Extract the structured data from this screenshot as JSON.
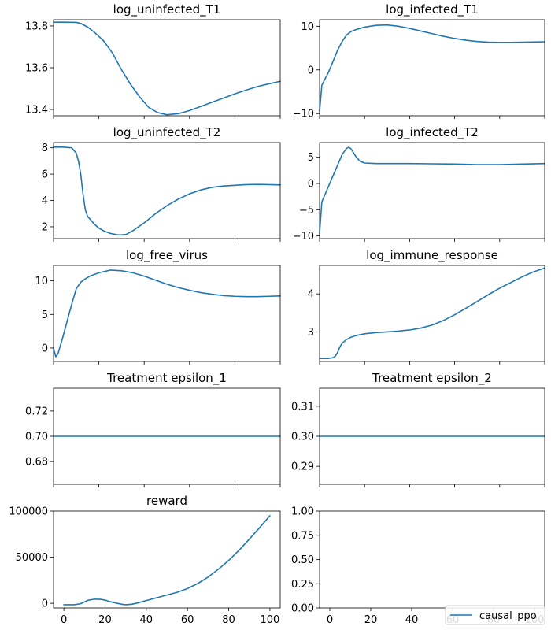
{
  "colors": {
    "series": "#1f77b4"
  },
  "legend": {
    "label": "causal_ppo",
    "placement": "lower-right"
  },
  "chart_data": [
    {
      "type": "line",
      "title": "log_uninfected_T1",
      "xlim": [
        0,
        100
      ],
      "ylim": [
        13.37,
        13.83
      ],
      "xticks": [
        0,
        20,
        40,
        60,
        80,
        100
      ],
      "show_xticklabels": false,
      "yticks": [
        13.4,
        13.6,
        13.8
      ],
      "yticklabels": [
        "13.4",
        "13.6",
        "13.8"
      ],
      "x": [
        0,
        5,
        10,
        12,
        15,
        18,
        22,
        26,
        30,
        34,
        38,
        42,
        46,
        50,
        55,
        60,
        65,
        70,
        75,
        80,
        85,
        90,
        95,
        100
      ],
      "y": [
        13.818,
        13.818,
        13.817,
        13.812,
        13.795,
        13.77,
        13.73,
        13.67,
        13.59,
        13.52,
        13.46,
        13.41,
        13.385,
        13.375,
        13.38,
        13.395,
        13.415,
        13.435,
        13.455,
        13.475,
        13.493,
        13.51,
        13.523,
        13.535
      ]
    },
    {
      "type": "line",
      "title": "log_infected_T1",
      "xlim": [
        0,
        100
      ],
      "ylim": [
        -10.5,
        11.5
      ],
      "xticks": [
        0,
        20,
        40,
        60,
        80,
        100
      ],
      "show_xticklabels": false,
      "yticks": [
        -10,
        0,
        10
      ],
      "yticklabels": [
        "−10",
        "0",
        "10"
      ],
      "x": [
        0,
        1,
        2,
        4,
        6,
        8,
        10,
        12,
        14,
        16,
        20,
        25,
        30,
        35,
        40,
        45,
        50,
        55,
        60,
        65,
        70,
        75,
        80,
        85,
        90,
        95,
        100
      ],
      "y": [
        -9.5,
        -3.5,
        -2.5,
        -0.5,
        2,
        4.5,
        6.5,
        8,
        8.8,
        9.2,
        9.8,
        10.2,
        10.3,
        10,
        9.5,
        8.9,
        8.3,
        7.7,
        7.2,
        6.8,
        6.5,
        6.35,
        6.3,
        6.3,
        6.35,
        6.4,
        6.45
      ]
    },
    {
      "type": "line",
      "title": "log_uninfected_T2",
      "xlim": [
        0,
        100
      ],
      "ylim": [
        1.1,
        8.4
      ],
      "xticks": [
        0,
        20,
        40,
        60,
        80,
        100
      ],
      "show_xticklabels": false,
      "yticks": [
        2,
        4,
        6,
        8
      ],
      "yticklabels": [
        "2",
        "4",
        "6",
        "8"
      ],
      "x": [
        0,
        4,
        8,
        10,
        11,
        12,
        13,
        14,
        15,
        16,
        18,
        20,
        22,
        25,
        28,
        30,
        32,
        35,
        40,
        45,
        50,
        55,
        60,
        65,
        70,
        75,
        80,
        85,
        90,
        95,
        100
      ],
      "y": [
        8.05,
        8.05,
        8.0,
        7.6,
        7.0,
        6.0,
        4.5,
        3.3,
        2.8,
        2.6,
        2.2,
        1.9,
        1.7,
        1.5,
        1.4,
        1.38,
        1.42,
        1.7,
        2.3,
        3.0,
        3.6,
        4.1,
        4.5,
        4.8,
        5.0,
        5.1,
        5.15,
        5.2,
        5.22,
        5.2,
        5.18
      ]
    },
    {
      "type": "line",
      "title": "log_infected_T2",
      "xlim": [
        0,
        100
      ],
      "ylim": [
        -10.5,
        7.8
      ],
      "xticks": [
        0,
        20,
        40,
        60,
        80,
        100
      ],
      "show_xticklabels": false,
      "yticks": [
        -10,
        -5,
        0,
        5
      ],
      "yticklabels": [
        "−10",
        "−5",
        "0",
        "5"
      ],
      "x": [
        0,
        1,
        2,
        4,
        6,
        8,
        10,
        12,
        13,
        14,
        16,
        18,
        20,
        25,
        30,
        40,
        50,
        60,
        70,
        80,
        90,
        100
      ],
      "y": [
        -9.5,
        -3.5,
        -2.5,
        -0.5,
        1.5,
        3.5,
        5.5,
        6.7,
        6.9,
        6.6,
        5.2,
        4.2,
        3.9,
        3.8,
        3.8,
        3.8,
        3.75,
        3.7,
        3.6,
        3.6,
        3.7,
        3.8
      ]
    },
    {
      "type": "line",
      "title": "log_free_virus",
      "xlim": [
        0,
        100
      ],
      "ylim": [
        -2,
        12.3
      ],
      "xticks": [
        0,
        20,
        40,
        60,
        80,
        100
      ],
      "show_xticklabels": false,
      "yticks": [
        0,
        5,
        10
      ],
      "yticklabels": [
        "0",
        "5",
        "10"
      ],
      "x": [
        0,
        1,
        2,
        4,
        6,
        8,
        10,
        12,
        14,
        16,
        20,
        25,
        30,
        35,
        40,
        45,
        50,
        55,
        60,
        65,
        70,
        75,
        80,
        85,
        90,
        95,
        100
      ],
      "y": [
        0,
        -1.3,
        -0.8,
        1.5,
        4,
        6.5,
        8.8,
        9.8,
        10.3,
        10.7,
        11.2,
        11.6,
        11.5,
        11.2,
        10.7,
        10.1,
        9.5,
        9,
        8.6,
        8.25,
        8,
        7.8,
        7.7,
        7.65,
        7.65,
        7.7,
        7.75
      ]
    },
    {
      "type": "line",
      "title": "log_immune_response",
      "xlim": [
        0,
        100
      ],
      "ylim": [
        2.22,
        4.75
      ],
      "xticks": [
        0,
        20,
        40,
        60,
        80,
        100
      ],
      "show_xticklabels": false,
      "yticks": [
        3,
        4
      ],
      "yticklabels": [
        "3",
        "4"
      ],
      "x": [
        0,
        4,
        6,
        7,
        8,
        9,
        10,
        12,
        14,
        16,
        20,
        25,
        30,
        35,
        40,
        45,
        50,
        55,
        60,
        65,
        70,
        75,
        80,
        85,
        90,
        95,
        100
      ],
      "y": [
        2.3,
        2.3,
        2.32,
        2.36,
        2.46,
        2.6,
        2.7,
        2.8,
        2.86,
        2.9,
        2.95,
        2.98,
        3.0,
        3.02,
        3.05,
        3.1,
        3.18,
        3.3,
        3.45,
        3.62,
        3.8,
        3.98,
        4.15,
        4.3,
        4.45,
        4.58,
        4.68
      ]
    },
    {
      "type": "line",
      "title": "Treatment epsilon_1",
      "xlim": [
        0,
        100
      ],
      "ylim": [
        0.662,
        0.738
      ],
      "xticks": [
        0,
        20,
        40,
        60,
        80,
        100
      ],
      "show_xticklabels": false,
      "yticks": [
        0.68,
        0.7,
        0.72
      ],
      "yticklabels": [
        "0.68",
        "0.70",
        "0.72"
      ],
      "x": [
        0,
        100
      ],
      "y": [
        0.7,
        0.7
      ]
    },
    {
      "type": "line",
      "title": "Treatment epsilon_2",
      "xlim": [
        0,
        100
      ],
      "ylim": [
        0.284,
        0.316
      ],
      "xticks": [
        0,
        20,
        40,
        60,
        80,
        100
      ],
      "show_xticklabels": false,
      "yticks": [
        0.29,
        0.3,
        0.31
      ],
      "yticklabels": [
        "0.29",
        "0.30",
        "0.31"
      ],
      "x": [
        0,
        100
      ],
      "y": [
        0.3,
        0.3
      ]
    },
    {
      "type": "line",
      "title": "reward",
      "xlim": [
        -5,
        105
      ],
      "ylim": [
        -5000,
        100000
      ],
      "xticks": [
        0,
        20,
        40,
        60,
        80,
        100
      ],
      "show_xticklabels": true,
      "xticklabels": [
        "0",
        "20",
        "40",
        "60",
        "80",
        "100"
      ],
      "yticks": [
        0,
        50000,
        100000
      ],
      "yticklabels": [
        "0",
        "50000",
        "100000"
      ],
      "x": [
        0,
        5,
        8,
        10,
        12,
        15,
        18,
        20,
        22,
        25,
        28,
        30,
        33,
        36,
        40,
        45,
        50,
        55,
        60,
        65,
        70,
        75,
        80,
        85,
        90,
        95,
        100
      ],
      "y": [
        -1500,
        -1500,
        -500,
        1500,
        3500,
        4500,
        4300,
        3500,
        2000,
        500,
        -1000,
        -1500,
        -1000,
        500,
        3000,
        6000,
        9000,
        12000,
        16000,
        21500,
        28500,
        37000,
        46500,
        57500,
        69500,
        82000,
        95000
      ]
    },
    {
      "type": "line",
      "title": "",
      "xlim": [
        -5,
        105
      ],
      "ylim": [
        0,
        1
      ],
      "xticks": [
        0,
        20,
        40,
        60,
        80,
        100
      ],
      "show_xticklabels": true,
      "xticklabels": [
        "0",
        "20",
        "40",
        "60",
        "80",
        "100"
      ],
      "yticks": [
        0,
        0.25,
        0.5,
        0.75,
        1.0
      ],
      "yticklabels": [
        "0.00",
        "0.25",
        "0.50",
        "0.75",
        "1.00"
      ],
      "x": [],
      "y": []
    }
  ]
}
